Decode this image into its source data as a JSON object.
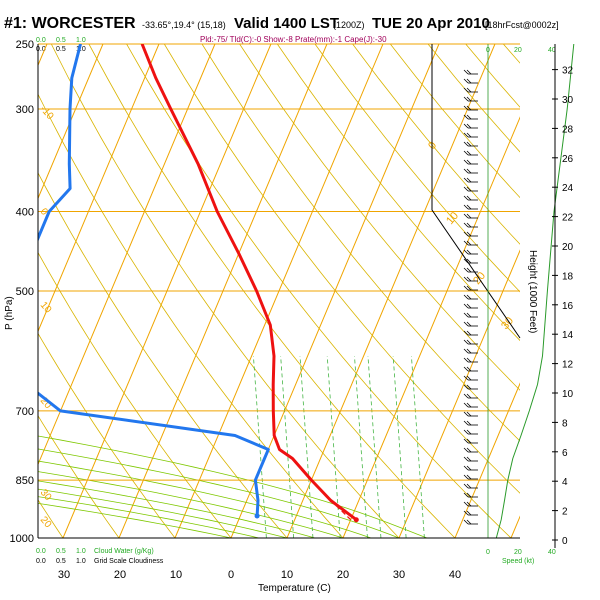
{
  "header": {
    "title": "#1: WORCESTER",
    "location": "-33.65°,19.4° (15,18)",
    "valid": "Valid 1400 LST",
    "utc": "(1200Z)",
    "date": "TUE 20 Apr 2010",
    "forecast": "[18hrFcst@0002z]",
    "indices": "Pld:-75/ Tld(C):-0 Show:-8 Prate(mm):-1 Cape(J):-30"
  },
  "legend": {
    "cloud_water_values": [
      "0.0",
      "0.5",
      "1.0"
    ],
    "cloud_water_label": "Cloud Water (g/Kg)",
    "grid_scale_values": [
      "0.0",
      "0.5",
      "1.0"
    ],
    "grid_scale_label": "Grid Scale Cloudiness",
    "top_cloud_values": [
      "0.0",
      "0.5",
      "1.0"
    ],
    "top_cloud_green_values": [
      "0.0",
      "0.5",
      "1.0"
    ],
    "speed_label": "Speed (kt)",
    "speed_ticks": [
      "0",
      "20",
      "40"
    ],
    "speed_ticks_top": [
      "0",
      "20",
      "40"
    ]
  },
  "colors": {
    "isotherm": "#f0a500",
    "dry_adiabat": "#d9b400",
    "moist_adiabat": "#7ec800",
    "mixing_ratio": "#44b544",
    "temperature": "#ee1111",
    "dewpoint": "#2277ee",
    "wind_speed": "#2a9a2a",
    "text_green": "#22aa22"
  },
  "chart_data": {
    "type": "line",
    "xlabel": "Temperature (C)",
    "ylabel": "P (hPa)",
    "y2label": "Height (1000 Feet)",
    "x_ticks": [
      "30",
      "20",
      "10",
      "0",
      "10",
      "20",
      "30",
      "40"
    ],
    "p_ticks": [
      "250",
      "300",
      "400",
      "500",
      "700",
      "850",
      "1000"
    ],
    "height_ticks": [
      "0",
      "2",
      "4",
      "6",
      "8",
      "10",
      "12",
      "14",
      "16",
      "18",
      "20",
      "22",
      "24",
      "26",
      "28",
      "30",
      "32"
    ],
    "isotherm_labels": [
      {
        "text": "20",
        "p": 950
      },
      {
        "text": "10",
        "p": 520
      },
      {
        "text": "0",
        "p": 400
      },
      {
        "text": "-10",
        "p": 300
      },
      {
        "text": "20",
        "p": 680
      },
      {
        "text": "30",
        "p": 880
      }
    ],
    "upper_labels": [
      "0",
      "10",
      "20",
      "30"
    ],
    "mixing_ratio_labels": [
      "1",
      "2",
      "3",
      "5",
      "8",
      "10",
      "15",
      "20"
    ],
    "series": [
      {
        "name": "Temperature",
        "p": [
          250,
          275,
          300,
          350,
          400,
          450,
          500,
          550,
          600,
          650,
          700,
          750,
          780,
          800,
          850,
          900,
          950
        ],
        "t": [
          -53,
          -48,
          -43,
          -34,
          -27,
          -20,
          -14,
          -9,
          -6,
          -4,
          -2,
          0,
          2,
          5,
          10,
          15,
          21
        ]
      },
      {
        "name": "Dewpoint",
        "p": [
          250,
          275,
          300,
          350,
          375,
          400,
          450,
          500,
          550,
          600,
          650,
          700,
          750,
          780,
          800,
          850,
          900,
          940
        ],
        "t": [
          -64,
          -63,
          -61,
          -57,
          -55,
          -57,
          -57,
          -55,
          -51,
          -50,
          -48,
          -40,
          -7,
          0,
          0,
          0,
          2,
          3
        ]
      }
    ],
    "wind_speed_profile": {
      "p": [
        1000,
        950,
        900,
        850,
        800,
        750,
        700,
        650,
        600,
        500,
        400,
        300,
        250
      ],
      "kt": [
        5,
        8,
        10,
        12,
        15,
        20,
        25,
        30,
        33,
        36,
        40,
        48,
        52
      ]
    }
  }
}
